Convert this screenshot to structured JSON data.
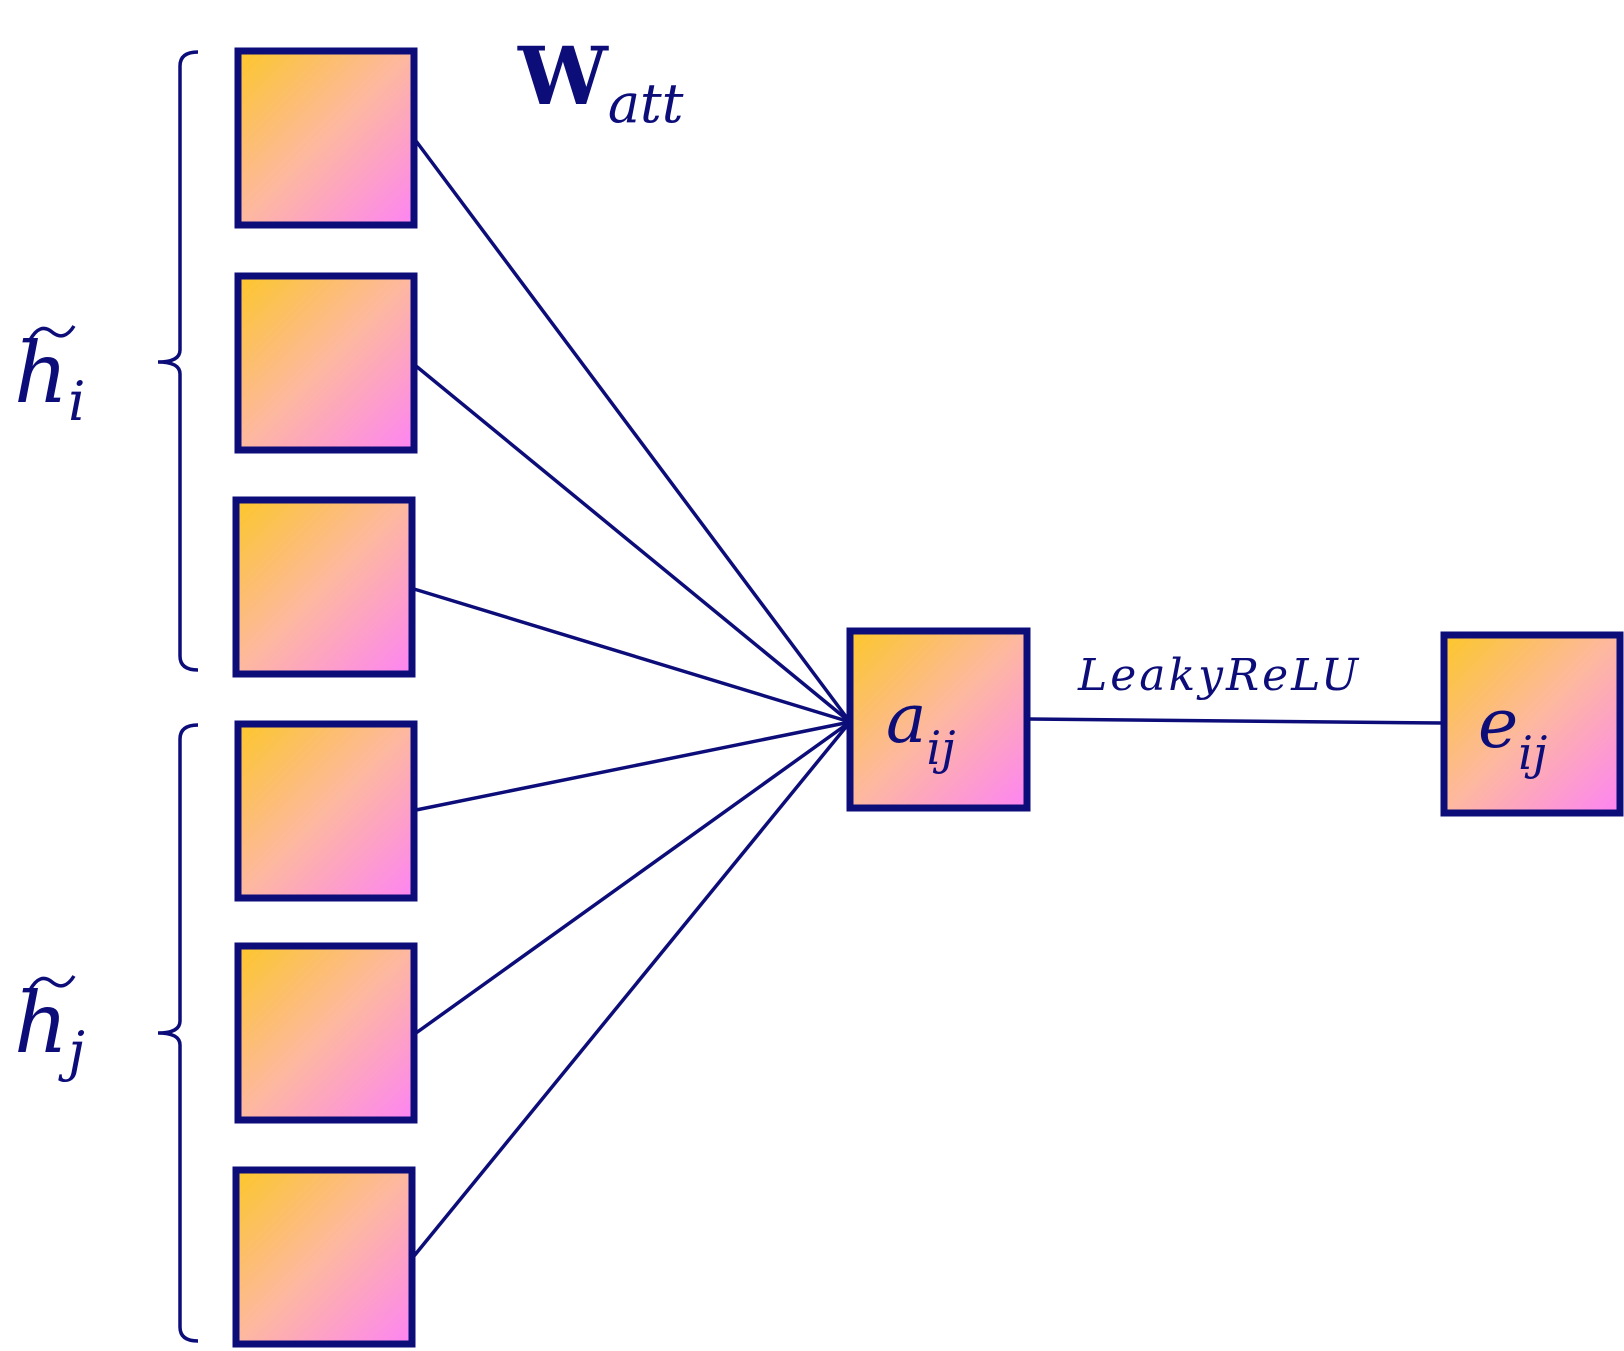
{
  "weights_label": {
    "main": "W",
    "sub": "att"
  },
  "input_groups": [
    {
      "name": "h-tilde-i",
      "base": "h",
      "sub": "i",
      "node_count": 3
    },
    {
      "name": "h-tilde-j",
      "base": "h",
      "sub": "j",
      "node_count": 3
    }
  ],
  "hidden_node": {
    "base": "a",
    "sub": "ij"
  },
  "activation_label": "LeakyReLU",
  "output_node": {
    "base": "e",
    "sub": "ij"
  },
  "colors": {
    "stroke": "#0d0d7a",
    "gradient_start": "#fcc72a",
    "gradient_mid": "#fdb8a0",
    "gradient_end": "#fd84f4"
  }
}
